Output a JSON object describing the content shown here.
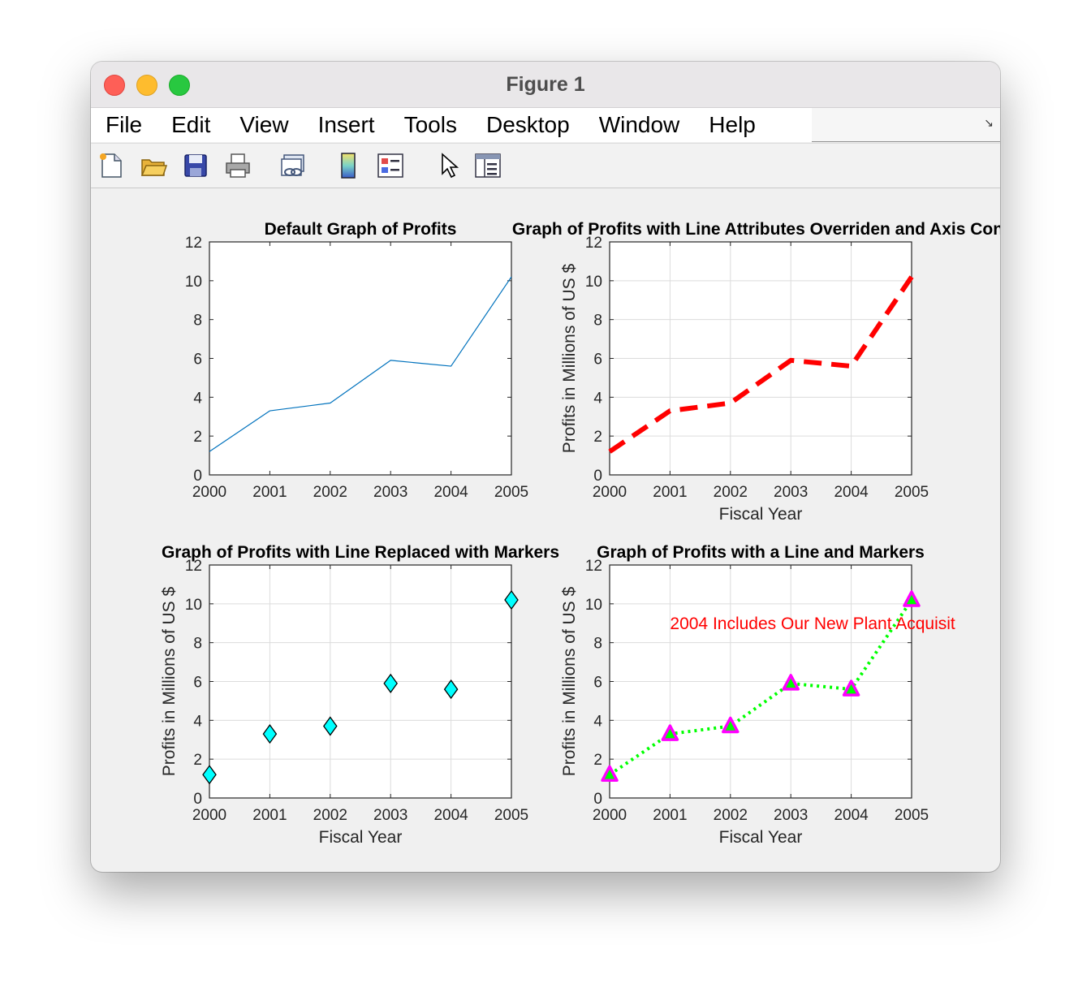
{
  "window": {
    "title": "Figure 1"
  },
  "menu": [
    "File",
    "Edit",
    "View",
    "Insert",
    "Tools",
    "Desktop",
    "Window",
    "Help"
  ],
  "toolbar_icons": [
    "new-figure-icon",
    "open-file-icon",
    "save-icon",
    "print-icon",
    "link-plot-icon",
    "colorbar-icon",
    "legend-icon",
    "pointer-icon",
    "property-inspector-icon"
  ],
  "chart_data": [
    {
      "type": "line",
      "title": "Default Graph of Profits",
      "xlabel": "",
      "ylabel": "",
      "x": [
        2000,
        2001,
        2002,
        2003,
        2004,
        2005
      ],
      "series": [
        {
          "values": [
            1.2,
            3.3,
            3.7,
            5.9,
            5.6,
            10.2
          ]
        }
      ],
      "xlim": [
        2000,
        2005
      ],
      "ylim": [
        0,
        12
      ],
      "xticks": [
        "2000",
        "2001",
        "2002",
        "2003",
        "2004",
        "2005"
      ],
      "yticks": [
        "0",
        "2",
        "4",
        "6",
        "8",
        "10",
        "12"
      ],
      "grid": false,
      "color": "#0072bd"
    },
    {
      "type": "line",
      "title": "Graph of Profits with Line Attributes Overriden and Axis Cont",
      "xlabel": "Fiscal Year",
      "ylabel": "Profits in Millions of US $",
      "x": [
        2000,
        2001,
        2002,
        2003,
        2004,
        2005
      ],
      "series": [
        {
          "values": [
            1.2,
            3.3,
            3.7,
            5.9,
            5.6,
            10.2
          ]
        }
      ],
      "xlim": [
        2000,
        2005
      ],
      "ylim": [
        0,
        12
      ],
      "xticks": [
        "2000",
        "2001",
        "2002",
        "2003",
        "2004",
        "2005"
      ],
      "yticks": [
        "0",
        "2",
        "4",
        "6",
        "8",
        "10",
        "12"
      ],
      "grid": true,
      "color": "#ff0000",
      "line_style": "dashed"
    },
    {
      "type": "scatter",
      "title": "Graph of Profits with Line Replaced with Markers",
      "xlabel": "Fiscal Year",
      "ylabel": "Profits in Millions of US $",
      "x": [
        2000,
        2001,
        2002,
        2003,
        2004,
        2005
      ],
      "series": [
        {
          "values": [
            1.2,
            3.3,
            3.7,
            5.9,
            5.6,
            10.2
          ]
        }
      ],
      "xlim": [
        2000,
        2005
      ],
      "ylim": [
        0,
        12
      ],
      "xticks": [
        "2000",
        "2001",
        "2002",
        "2003",
        "2004",
        "2005"
      ],
      "yticks": [
        "0",
        "2",
        "4",
        "6",
        "8",
        "10",
        "12"
      ],
      "grid": true,
      "color": "#00ffff",
      "marker": "diamond"
    },
    {
      "type": "line",
      "title": "Graph of Profits with a Line and Markers",
      "xlabel": "Fiscal Year",
      "ylabel": "Profits in Millions of US $",
      "x": [
        2000,
        2001,
        2002,
        2003,
        2004,
        2005
      ],
      "series": [
        {
          "values": [
            1.2,
            3.3,
            3.7,
            5.9,
            5.6,
            10.2
          ]
        }
      ],
      "xlim": [
        2000,
        2005
      ],
      "ylim": [
        0,
        12
      ],
      "xticks": [
        "2000",
        "2001",
        "2002",
        "2003",
        "2004",
        "2005"
      ],
      "yticks": [
        "0",
        "2",
        "4",
        "6",
        "8",
        "10",
        "12"
      ],
      "grid": true,
      "color": "#00ff00",
      "line_style": "dotted",
      "marker": "triangle",
      "marker_edge_color": "#ff00ff",
      "annotation": {
        "text": "2004 Includes Our New Plant Acquisit",
        "x": 2001,
        "y": 9,
        "color": "#ff0000"
      }
    }
  ]
}
